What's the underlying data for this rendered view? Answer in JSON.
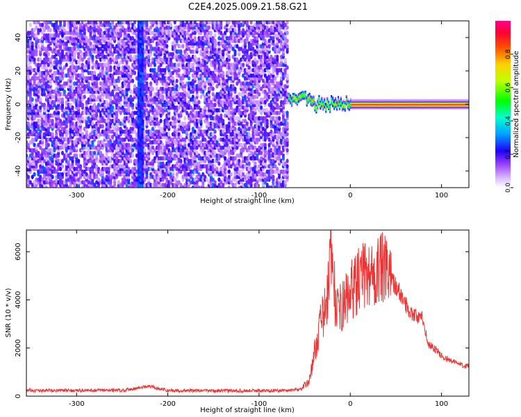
{
  "chart_data": [
    {
      "type": "heatmap",
      "title": "C2E4.2025.009.21.58.G21",
      "xlabel": "Height of straight line (km)",
      "ylabel": "Frequency (Hz)",
      "xlim": [
        -355,
        130
      ],
      "ylim": [
        -50,
        50
      ],
      "x_ticks": [
        -300,
        -200,
        -100,
        0,
        100
      ],
      "y_ticks": [
        -40,
        -20,
        0,
        20,
        40
      ],
      "colorbar": {
        "label": "Normalized spectral amplitude",
        "range": [
          0,
          1
        ],
        "ticks": [
          0.0,
          0.2,
          0.4,
          0.6,
          0.8
        ],
        "tick_labels": [
          "0.0",
          "0.2",
          "0.4",
          "0.6",
          "0.8"
        ],
        "colors": [
          "#ffffff",
          "#c8a0ff",
          "#8000ff",
          "#0000ff",
          "#00c8ff",
          "#00ff40",
          "#ffff00",
          "#ff8000",
          "#ff0000",
          "#ff0080"
        ]
      },
      "regions": [
        {
          "x_range": [
            -355,
            -68
          ],
          "description_level": "noise",
          "amplitude_range": [
            0.05,
            0.3
          ]
        },
        {
          "x_range": [
            -68,
            130
          ],
          "freq_band_hz": [
            -3,
            3
          ],
          "peak_amplitude": 0.9
        }
      ],
      "narrow_line": {
        "x": -230,
        "amplitude": 0.3
      }
    },
    {
      "type": "line",
      "xlabel": "Height of straight line (km)",
      "ylabel": "SNR (10 * v/v)",
      "xlim": [
        -355,
        130
      ],
      "ylim": [
        0,
        6900
      ],
      "x_ticks": [
        -300,
        -200,
        -100,
        0,
        100
      ],
      "y_ticks": [
        0,
        2000,
        4000,
        6000
      ],
      "color": "#ee3333",
      "x": [
        -355,
        -300,
        -250,
        -220,
        -200,
        -150,
        -100,
        -70,
        -55,
        -45,
        -35,
        -25,
        -22,
        -15,
        -5,
        5,
        15,
        25,
        35,
        40,
        45,
        55,
        65,
        75,
        80,
        85,
        90,
        100,
        110,
        120,
        130
      ],
      "y": [
        250,
        250,
        260,
        420,
        250,
        240,
        240,
        250,
        300,
        650,
        2800,
        4200,
        6900,
        3600,
        4200,
        4900,
        5300,
        5400,
        5600,
        5400,
        5000,
        4300,
        3600,
        3300,
        3300,
        2200,
        2100,
        1700,
        1500,
        1350,
        1250
      ]
    }
  ]
}
